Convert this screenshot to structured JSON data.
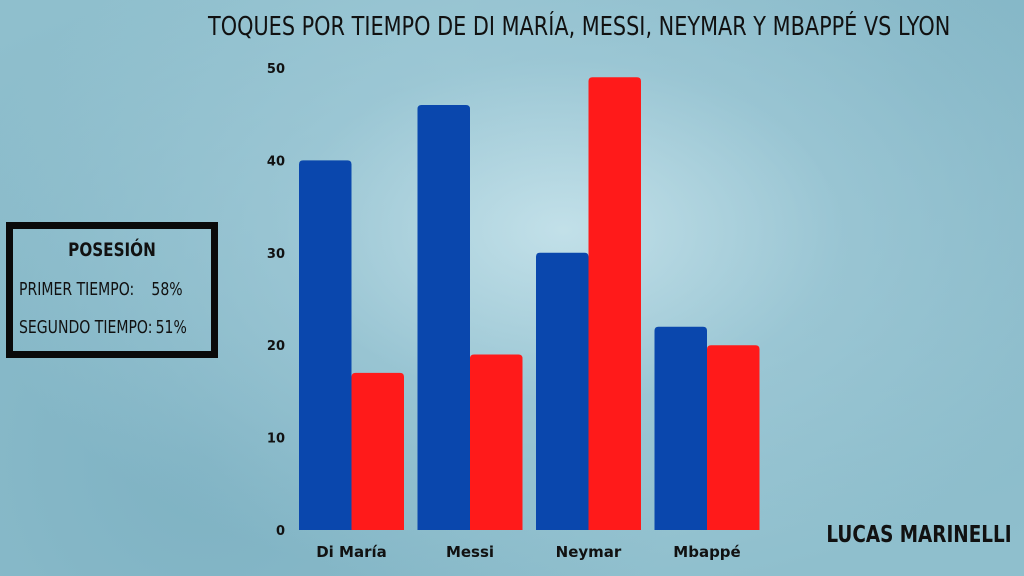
{
  "title": "TOQUES POR TIEMPO DE DI MARÍA, MESSI, NEYMAR Y MBAPPÉ VS LYON",
  "possession": {
    "heading": "POSESIÓN",
    "rows": [
      {
        "label": "PRIMER TIEMPO:",
        "value": "58%"
      },
      {
        "label": "SEGUNDO TIEMPO:",
        "value": "51%"
      }
    ]
  },
  "author": "LUCAS MARINELLI",
  "chart_data": {
    "type": "bar",
    "title": "TOQUES POR TIEMPO DE DI MARÍA, MESSI, NEYMAR Y MBAPPÉ VS LYON",
    "xlabel": "",
    "ylabel": "",
    "categories": [
      "Di María",
      "Messi",
      "Neymar",
      "Mbappé"
    ],
    "series": [
      {
        "values": [
          40,
          46,
          30,
          22
        ],
        "color": "#0a47ad"
      },
      {
        "values": [
          17,
          19,
          49,
          20
        ],
        "color": "#ff1a1a"
      }
    ],
    "ylim": [
      0,
      50
    ],
    "yticks": [
      0,
      10,
      20,
      30,
      40,
      50
    ],
    "grid": false,
    "legend": "none"
  }
}
